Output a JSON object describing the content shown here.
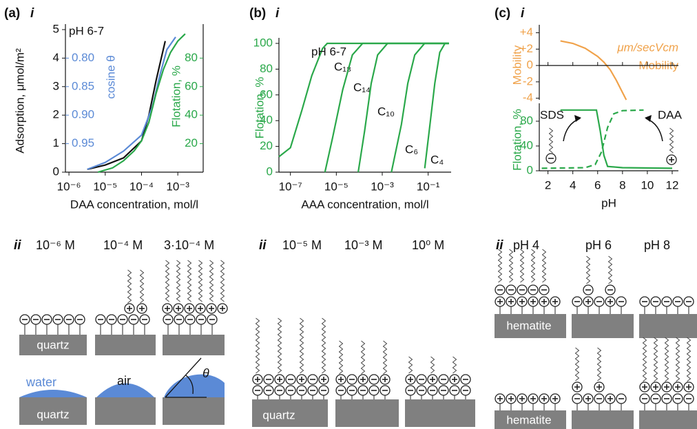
{
  "chart_data": [
    {
      "type": "line",
      "panel": "(a)",
      "part": "i",
      "annotation": "pH 6-7",
      "xlabel": "DAA concentration, mol/l",
      "ylabel": "Adsorption, μmol/m²",
      "y2label": "cosine θ",
      "y3label": "Flotation, %",
      "log_x": true,
      "xlim": [
        8e-07,
        0.005
      ],
      "xticks": [
        {
          "value": 1e-06,
          "label": "10⁻⁶"
        },
        {
          "value": 1e-05,
          "label": "10⁻⁵"
        },
        {
          "value": 0.0001,
          "label": "10⁻⁴"
        },
        {
          "value": 0.001,
          "label": "10⁻³"
        }
      ],
      "ylim": [
        0,
        5
      ],
      "yticks": [
        0,
        1,
        2,
        3,
        4,
        5
      ],
      "y2lim": [
        1.0,
        0.75
      ],
      "y2ticks": [
        {
          "value": 0.8,
          "label": "0.80"
        },
        0.85,
        {
          "value": 0.9,
          "label": "0.90"
        },
        0.95
      ],
      "y3lim": [
        0,
        100
      ],
      "y3ticks": [
        20,
        40,
        60,
        80
      ],
      "series": [
        {
          "color": "#111111",
          "x": [
            3.2e-06,
            1e-05,
            3.2e-05,
            0.0001,
            0.00016,
            0.00025,
            0.00045
          ],
          "values": [
            0.1,
            0.25,
            0.5,
            1.1,
            2.0,
            3.2,
            4.6
          ]
        },
        {
          "color": "#5b8ad6",
          "axis": "y2",
          "x": [
            3.2e-06,
            1e-05,
            3.2e-05,
            0.0001,
            0.0002,
            0.00032,
            0.0005,
            0.00087
          ],
          "values": [
            0.995,
            0.983,
            0.963,
            0.935,
            0.885,
            0.83,
            0.785,
            0.763
          ]
        },
        {
          "color": "#2aa84a",
          "axis": "y3",
          "x": [
            6.3e-06,
            1.6e-05,
            3.2e-05,
            6.3e-05,
            0.0001,
            0.00016,
            0.00025,
            0.0004,
            0.00063,
            0.001,
            0.0016
          ],
          "values": [
            0,
            3,
            8,
            15,
            22,
            35,
            55,
            72,
            84,
            92,
            97
          ]
        }
      ]
    },
    {
      "type": "line",
      "panel": "(b)",
      "part": "i",
      "annotation": "pH 6-7",
      "xlabel": "AAA concentration, mol/l",
      "ylabel": "Flotation, %",
      "log_x": true,
      "xlim": [
        3.16e-08,
        1
      ],
      "xticks": [
        {
          "value": 1e-07,
          "label": "10⁻⁷"
        },
        {
          "value": 1e-05,
          "label": "10⁻⁵"
        },
        {
          "value": 0.001,
          "label": "10⁻³"
        },
        {
          "value": 0.1,
          "label": "10⁻¹"
        }
      ],
      "ylim": [
        0,
        100
      ],
      "yticks": [
        0,
        20,
        40,
        60,
        80,
        100
      ],
      "series": [
        {
          "name": "C₁₈",
          "color": "#2aa84a",
          "x": [
            3.16e-08,
            1e-07,
            3.16e-07,
            8.5e-07,
            2.5e-06,
            4e-06,
            0.8
          ],
          "values": [
            12,
            19,
            48,
            75,
            96,
            100,
            100
          ]
        },
        {
          "name": "C₁₄",
          "color": "#2aa84a",
          "x": [
            3.2e-06,
            6.9e-06,
            1.9e-05,
            5e-05,
            0.00014,
            0.8
          ],
          "values": [
            0,
            27,
            64,
            91,
            100,
            100
          ]
        },
        {
          "name": "C₁₀",
          "color": "#2aa84a",
          "x": [
            9e-05,
            0.00017,
            0.00033,
            0.00063,
            0.0017,
            0.8
          ],
          "values": [
            0,
            32,
            69,
            91,
            100,
            100
          ]
        },
        {
          "name": "C₆",
          "color": "#2aa84a",
          "x": [
            0.0025,
            0.0068,
            0.013,
            0.026,
            0.07,
            0.8
          ],
          "values": [
            0,
            37,
            69,
            91,
            100,
            100
          ]
        },
        {
          "name": "C₄",
          "color": "#2aa84a",
          "x": [
            0.071,
            0.12,
            0.195,
            0.32,
            0.54,
            0.8
          ],
          "values": [
            3,
            37,
            69,
            93,
            100,
            100
          ]
        }
      ]
    },
    {
      "type": "line",
      "panel": "(c)",
      "part": "i",
      "ylabel": "Mobility",
      "annotations": [
        "μm/secVcm",
        "Mobility"
      ],
      "xlim": [
        1.3,
        12.5
      ],
      "ylim": [
        -4.2,
        4.3
      ],
      "yticks": [
        {
          "value": 4,
          "label": "+4"
        },
        {
          "value": 2,
          "label": "+2"
        },
        0,
        -2,
        -4
      ],
      "series": [
        {
          "color": "#f0a24a",
          "x": [
            3,
            4,
            5,
            6,
            6.5,
            7,
            7.5,
            8,
            8.3
          ],
          "values": [
            3,
            2.7,
            2.1,
            1.1,
            0.4,
            -0.5,
            -1.8,
            -3.3,
            -4.2
          ]
        }
      ]
    },
    {
      "type": "line",
      "xlabel": "pH",
      "ylabel": "Flotation, %",
      "xlim": [
        1.3,
        12.5
      ],
      "xticks": [
        2,
        4,
        6,
        8,
        10,
        12
      ],
      "ylim": [
        0,
        100
      ],
      "yticks": [
        0,
        40,
        80
      ],
      "series": [
        {
          "name": "SDS",
          "color": "#2aa84a",
          "x": [
            3,
            5.9,
            6.2,
            6.5,
            6.8,
            8,
            12
          ],
          "values": [
            98,
            98,
            65,
            25,
            7,
            5,
            4
          ]
        },
        {
          "name": "DAA",
          "color": "#2aa84a",
          "dashed": true,
          "x": [
            1.5,
            5,
            5.8,
            6.3,
            6.8,
            7.3,
            8,
            9.7
          ],
          "values": [
            4,
            5,
            10,
            30,
            70,
            92,
            97,
            98
          ]
        }
      ]
    }
  ],
  "diagrams": {
    "a": {
      "label": "ii",
      "headers": [
        "10⁻⁶ M",
        "10⁻⁴ M",
        "3·10⁻⁴ M"
      ],
      "substrate": "quartz",
      "liquid": "water",
      "gas": "air",
      "angle": "θ",
      "substrate_bottom": "quartz"
    },
    "b": {
      "label": "ii",
      "headers": [
        "10⁻⁵ M",
        "10⁻³ M",
        "10⁰ M"
      ],
      "substrate": "quartz"
    },
    "c": {
      "label": "ii",
      "headers": [
        "pH 4",
        "pH 6",
        "pH 8"
      ],
      "substrate": "hematite",
      "substrate_bottom": "hematite"
    }
  }
}
